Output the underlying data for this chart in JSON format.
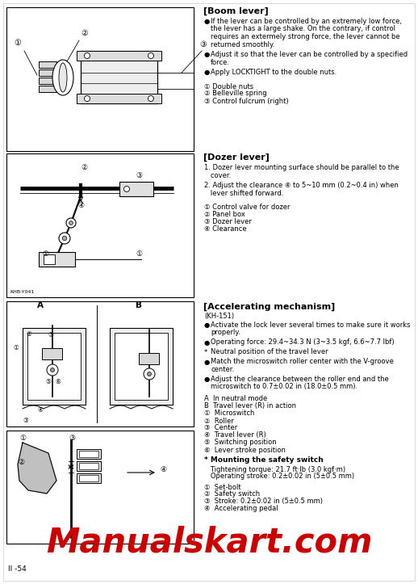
{
  "page_bg": "#ffffff",
  "page_number": "II -54",
  "watermark_text": "Manualskart.com",
  "watermark_color": "#cc0000",
  "sections": [
    {
      "title": "[Boom lever]",
      "bullets": [
        "If the lever can be controlled by an extremely low force,\nthe lever has a large shake. On the contrary, if control\nrequires an extermely strong force, the lever cannot be\nreturned smoothly.",
        "Adjust it so that the lever can be controlled by a specified\nforce.",
        "Apply LOCKTIGHT to the double nuts."
      ],
      "items": [
        "① Double nuts",
        "② Belleville spring",
        "③ Control fulcrum (right)"
      ]
    },
    {
      "title": "[Dozer lever]",
      "numbered": [
        "Dozer lever mounting surface should be parallel to the cover.",
        "Adjust the clearance ④ to 5~10 mm (0.2~0.4 in) when lever shifted forward."
      ],
      "items": [
        "① Control valve for dozer",
        "② Panel box",
        "③ Dozer lever",
        "④ Clearance"
      ]
    },
    {
      "title": "[Accelerating mechanism]",
      "subtitle": "(KH-151)",
      "bullets": [
        "Activate the lock lever several times to make sure it works\nproperly.",
        "Operating force: 29.4~34.3 N (3~3.5 kgf, 6.6~7.7 lbf)",
        "Neutral position of the travel lever",
        "Match the microswitch roller center with the V-groove\ncenter.",
        "Adjust the clearance between the roller end and the\nmicroswitch to 0.7±0.02 in (18.0±0.5 mm)."
      ],
      "items_ab": [
        "A  In neutral mode",
        "B  Travel lever (R) in action",
        "①  Microswitch",
        "②  Roller",
        "③  Center",
        "④  Travel lever (R)",
        "⑤  Switching position",
        "⑥  Lever stroke position"
      ],
      "safety_title": "* Mounting the safety switch",
      "safety_items": [
        "   Tightening torque: 21.7 ft·lb (3.0 kgf·m)",
        "   Operating stroke: 0.2±0.02 in (5±0.5 mm)"
      ],
      "items2": [
        "①  Set-bolt",
        "②  Safety switch",
        "③  Stroke: 0.2±0.02 in (5±0.5 mm)",
        "④  Accelerating pedal"
      ]
    }
  ]
}
